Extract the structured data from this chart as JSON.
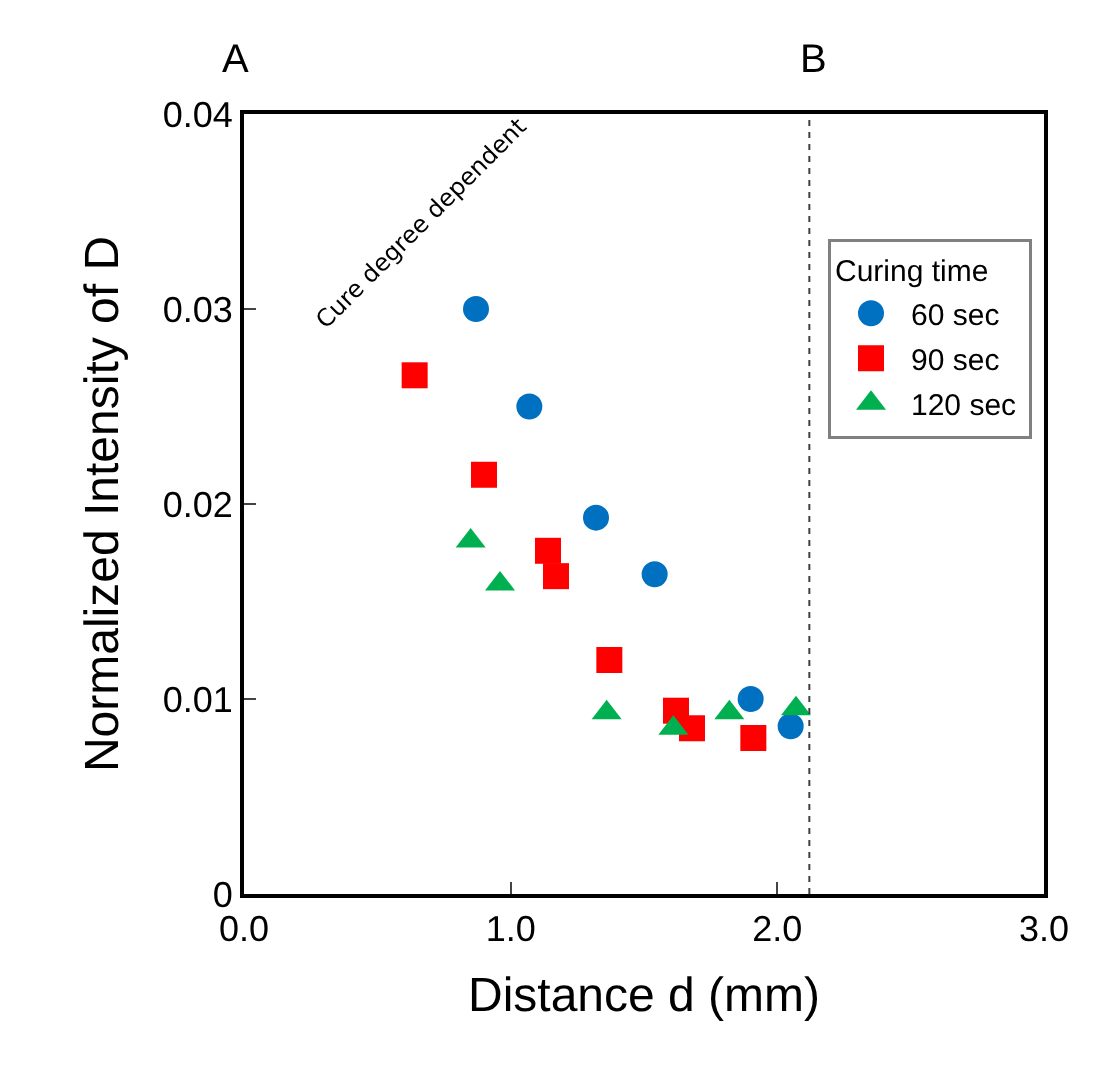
{
  "chart_data": {
    "type": "scatter",
    "xlabel": "Distance d (mm)",
    "ylabel": "Normalized Intensity of D",
    "legend_title": "Curing time",
    "annotations": [
      "A",
      "B",
      "Cure degree dependent"
    ],
    "series": [
      {
        "name": "60 sec",
        "color": "#0070c0",
        "marker": "circle",
        "x": [
          0.87,
          1.07,
          1.32,
          1.54,
          1.9,
          2.05
        ],
        "values": [
          0.03,
          0.025,
          0.0193,
          0.0164,
          0.01,
          0.0086
        ]
      },
      {
        "name": "90 sec",
        "color": "#ff0000",
        "marker": "square",
        "x": [
          0.64,
          0.9,
          1.14,
          1.17,
          1.37,
          1.62,
          1.68,
          1.91
        ],
        "values": [
          0.0266,
          0.0215,
          0.0176,
          0.0163,
          0.012,
          0.0094,
          0.0085,
          0.008
        ]
      },
      {
        "name": "120 sec",
        "color": "#00b050",
        "marker": "triangle",
        "x": [
          0.85,
          0.96,
          1.36,
          1.61,
          1.82,
          2.07
        ],
        "values": [
          0.0181,
          0.0159,
          0.0093,
          0.0085,
          0.0093,
          0.0095
        ]
      }
    ],
    "ref_lines": [
      {
        "axis": "x",
        "value": 2.12,
        "label": null,
        "color": "#404040",
        "line_style": "dotted"
      }
    ],
    "xlim": [
      0,
      3
    ],
    "xticks": [
      {
        "value": 0,
        "label": "0.0"
      },
      {
        "value": 1,
        "label": "1.0"
      },
      {
        "value": 2,
        "label": "2.0"
      },
      {
        "value": 3,
        "label": "3.0"
      }
    ],
    "ylim": [
      0,
      0.04
    ],
    "yticks": [
      0,
      0.01,
      0.02,
      0.03,
      0.04
    ],
    "legend": "top right"
  }
}
